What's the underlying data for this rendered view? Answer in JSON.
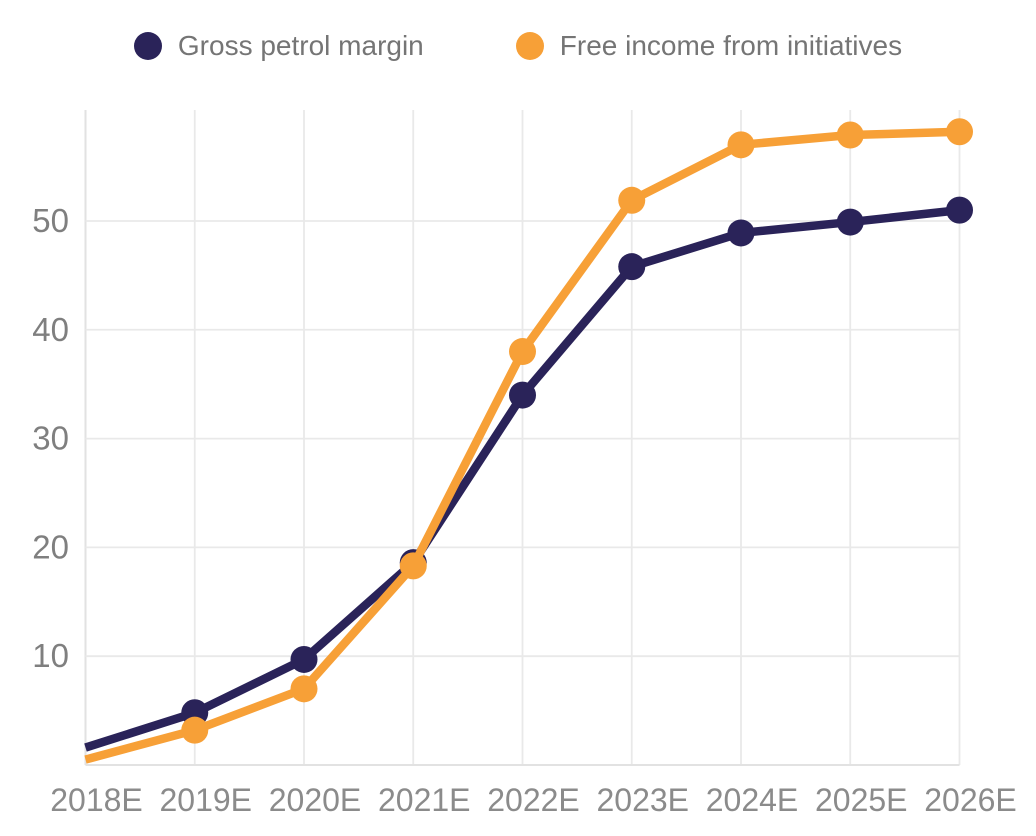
{
  "chart_data": {
    "type": "line",
    "title": "",
    "xlabel": "",
    "ylabel": "",
    "categories": [
      "2018E",
      "2019E",
      "2020E",
      "2021E",
      "2022E",
      "2023E",
      "2024E",
      "2025E",
      "2026E"
    ],
    "series": [
      {
        "name": "Gross petrol margin",
        "color": "#2A2359",
        "values": [
          1.6,
          4.8,
          9.7,
          18.6,
          34.0,
          45.8,
          48.9,
          49.9,
          51.0
        ]
      },
      {
        "name": "Free income from initiatives",
        "color": "#F7A037",
        "values": [
          0.5,
          3.2,
          7.0,
          18.3,
          38.0,
          51.9,
          57.0,
          57.9,
          58.2
        ]
      }
    ],
    "yticks": [
      10,
      20,
      30,
      40,
      50
    ],
    "ylim": [
      0,
      60.2
    ],
    "grid": true,
    "legend_position": "top",
    "marker": "circle",
    "first_point_marker_hidden": true
  },
  "colors": {
    "background": "#ffffff",
    "gridline": "#e9e9e9",
    "axis_line": "#e2e2e2",
    "x_tick_label": "#8b8b8b",
    "y_tick_label": "#7f7f7f",
    "legend_text": "#757575"
  }
}
